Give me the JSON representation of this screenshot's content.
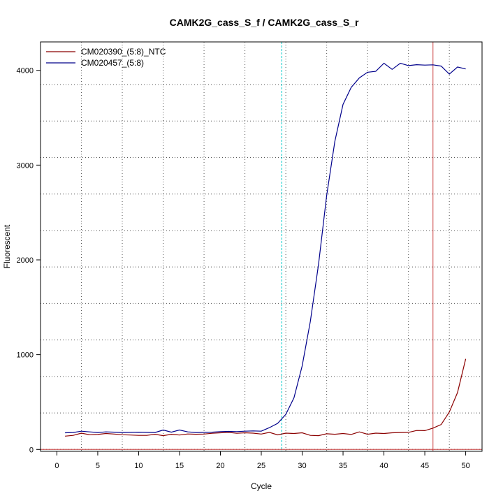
{
  "chart_data": {
    "type": "line",
    "title": "CAMK2G_cass_S_f / CAMK2G_cass_S_r",
    "xlabel": "Cycle",
    "ylabel": "Fluorescent",
    "xlim": [
      -2,
      52
    ],
    "ylim": [
      -20,
      4300
    ],
    "x_ticks": [
      0,
      5,
      10,
      15,
      20,
      25,
      30,
      35,
      40,
      45,
      50
    ],
    "x_tick_labels": [
      "0",
      "5",
      "10",
      "15",
      "20",
      "25",
      "30",
      "35",
      "40",
      "45",
      "50"
    ],
    "y_ticks": [
      0,
      1000,
      2000,
      3000,
      4000
    ],
    "y_tick_labels": [
      "0",
      "1000",
      "2000",
      "3000",
      "4000"
    ],
    "grid": true,
    "grid_x": [
      3,
      8,
      13,
      18,
      23,
      28,
      33,
      38,
      43,
      48
    ],
    "grid_y": [
      0,
      385,
      770,
      1155,
      1540,
      1925,
      2310,
      2695,
      3080,
      3465,
      3850
    ],
    "legend_position": "top-left",
    "vlines": [
      {
        "x": 27.5,
        "color": "#00cccc",
        "style": "dashed"
      },
      {
        "x": 46,
        "color": "#cc4444",
        "style": "solid"
      }
    ],
    "hlines": [
      {
        "y": 0,
        "color": "#cc4444",
        "style": "solid"
      }
    ],
    "x": [
      1,
      2,
      3,
      4,
      5,
      6,
      7,
      8,
      9,
      10,
      11,
      12,
      13,
      14,
      15,
      16,
      17,
      18,
      19,
      20,
      21,
      22,
      23,
      24,
      25,
      26,
      27,
      28,
      29,
      30,
      31,
      32,
      33,
      34,
      35,
      36,
      37,
      38,
      39,
      40,
      41,
      42,
      43,
      44,
      45,
      46,
      47,
      48,
      49,
      50
    ],
    "series": [
      {
        "name": "CM020390_(5:8)_NTC",
        "color": "#8b0000",
        "values": [
          140,
          148,
          172,
          155,
          158,
          168,
          162,
          155,
          152,
          148,
          148,
          160,
          145,
          160,
          152,
          163,
          160,
          162,
          170,
          175,
          180,
          170,
          175,
          172,
          162,
          180,
          153,
          172,
          168,
          175,
          148,
          145,
          165,
          160,
          168,
          158,
          185,
          160,
          172,
          168,
          175,
          178,
          180,
          200,
          198,
          225,
          262,
          395,
          600,
          955
        ]
      },
      {
        "name": "CM020457_(5:8)",
        "color": "#00008b",
        "values": [
          175,
          178,
          192,
          185,
          178,
          185,
          182,
          178,
          180,
          182,
          180,
          178,
          205,
          182,
          205,
          185,
          178,
          180,
          182,
          188,
          190,
          188,
          192,
          195,
          192,
          230,
          275,
          370,
          545,
          880,
          1350,
          1950,
          2680,
          3250,
          3640,
          3820,
          3920,
          3980,
          3990,
          4075,
          4010,
          4075,
          4050,
          4060,
          4055,
          4058,
          4045,
          3960,
          4035,
          4015
        ]
      }
    ]
  }
}
